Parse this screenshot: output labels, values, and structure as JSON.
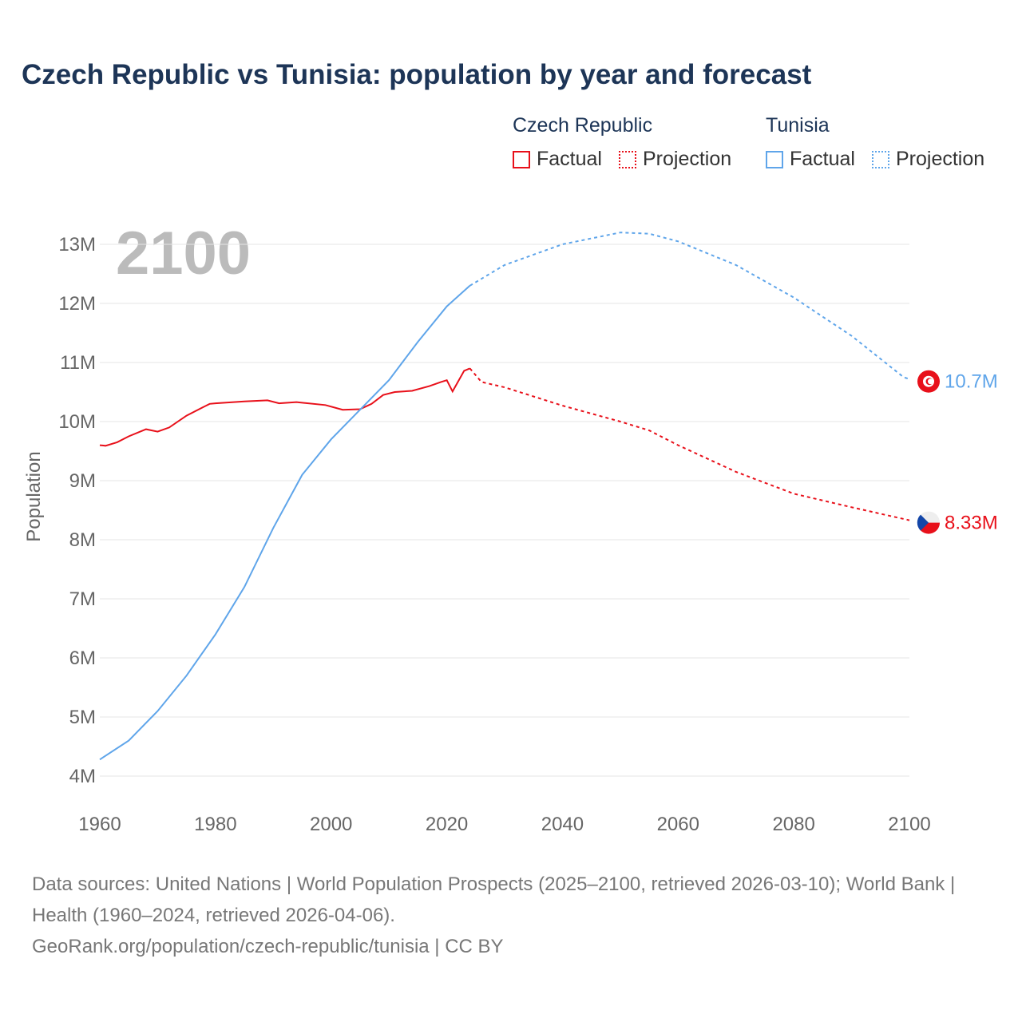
{
  "title": "Czech Republic vs Tunisia: population by year and forecast",
  "legend": {
    "groups": [
      {
        "name": "Czech Republic",
        "factual": "Factual",
        "projection": "Projection",
        "color": "#e8101a"
      },
      {
        "name": "Tunisia",
        "factual": "Factual",
        "projection": "Projection",
        "color": "#5fa5ea"
      }
    ]
  },
  "footer": {
    "line1": "Data sources: United Nations | World Population Prospects (2025–2100, retrieved 2026-03-10); World Bank | Health (1960–2024, retrieved 2026-04-06).",
    "line2": "GeoRank.org/population/czech-republic/tunisia | CC BY"
  },
  "chart_data": {
    "type": "line",
    "ylabel": "Population",
    "year_label": "2100",
    "xlim": [
      1960,
      2100
    ],
    "ylim": [
      4,
      13
    ],
    "x_ticks": [
      "1960",
      "1980",
      "2000",
      "2020",
      "2040",
      "2060",
      "2080",
      "2100"
    ],
    "y_ticks": [
      "4M",
      "5M",
      "6M",
      "7M",
      "8M",
      "9M",
      "10M",
      "11M",
      "12M",
      "13M"
    ],
    "series": [
      {
        "name": "Czech Republic",
        "color": "#e8101a",
        "end_label": "8.33M",
        "flag": "czech-flag",
        "factual": [
          [
            1960,
            9.6
          ],
          [
            1961,
            9.59
          ],
          [
            1963,
            9.65
          ],
          [
            1965,
            9.75
          ],
          [
            1968,
            9.87
          ],
          [
            1970,
            9.83
          ],
          [
            1972,
            9.9
          ],
          [
            1975,
            10.1
          ],
          [
            1979,
            10.3
          ],
          [
            1980,
            10.31
          ],
          [
            1985,
            10.34
          ],
          [
            1989,
            10.36
          ],
          [
            1991,
            10.31
          ],
          [
            1994,
            10.33
          ],
          [
            1999,
            10.28
          ],
          [
            2002,
            10.2
          ],
          [
            2005,
            10.21
          ],
          [
            2007,
            10.3
          ],
          [
            2009,
            10.45
          ],
          [
            2011,
            10.5
          ],
          [
            2014,
            10.52
          ],
          [
            2017,
            10.6
          ],
          [
            2019,
            10.67
          ],
          [
            2020,
            10.7
          ],
          [
            2021,
            10.51
          ],
          [
            2023,
            10.86
          ],
          [
            2024,
            10.9
          ]
        ],
        "projection": [
          [
            2024,
            10.9
          ],
          [
            2026,
            10.67
          ],
          [
            2030,
            10.58
          ],
          [
            2040,
            10.27
          ],
          [
            2050,
            10.0
          ],
          [
            2055,
            9.85
          ],
          [
            2060,
            9.6
          ],
          [
            2070,
            9.15
          ],
          [
            2080,
            8.78
          ],
          [
            2090,
            8.55
          ],
          [
            2100,
            8.33
          ]
        ]
      },
      {
        "name": "Tunisia",
        "color": "#5fa5ea",
        "end_label": "10.7M",
        "flag": "tunisia-flag",
        "factual": [
          [
            1960,
            4.28
          ],
          [
            1965,
            4.6
          ],
          [
            1970,
            5.1
          ],
          [
            1975,
            5.7
          ],
          [
            1980,
            6.4
          ],
          [
            1985,
            7.2
          ],
          [
            1990,
            8.2
          ],
          [
            1995,
            9.1
          ],
          [
            2000,
            9.7
          ],
          [
            2005,
            10.2
          ],
          [
            2010,
            10.7
          ],
          [
            2015,
            11.35
          ],
          [
            2020,
            11.95
          ],
          [
            2024,
            12.3
          ]
        ],
        "projection": [
          [
            2024,
            12.3
          ],
          [
            2030,
            12.65
          ],
          [
            2040,
            13.0
          ],
          [
            2050,
            13.2
          ],
          [
            2055,
            13.18
          ],
          [
            2060,
            13.05
          ],
          [
            2070,
            12.65
          ],
          [
            2080,
            12.1
          ],
          [
            2090,
            11.45
          ],
          [
            2099,
            10.75
          ],
          [
            2100,
            10.72
          ]
        ]
      }
    ]
  }
}
